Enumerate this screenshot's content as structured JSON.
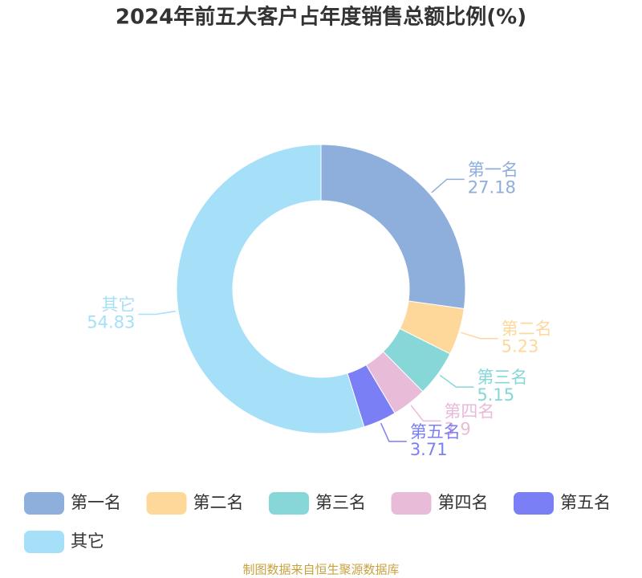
{
  "chart_data": {
    "type": "pie",
    "title": "2024年前五大客户占年度销售总额比例(%)",
    "categories": [
      "第一名",
      "第二名",
      "第三名",
      "第四名",
      "第五名",
      "其它"
    ],
    "values": [
      27.18,
      5.23,
      5.15,
      3.9,
      3.71,
      54.83
    ],
    "colors": [
      "#8eaedb",
      "#fdd89a",
      "#87d7d8",
      "#e8bbd9",
      "#7b7ff5",
      "#a6dff8"
    ],
    "legend": "bottom",
    "source": "制图数据来自恒生聚源数据库"
  }
}
